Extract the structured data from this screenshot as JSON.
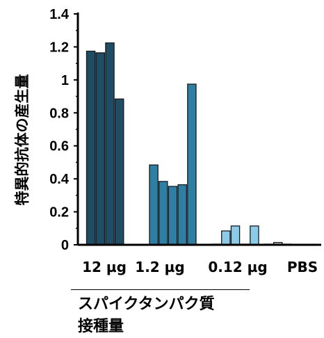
{
  "chart_data": {
    "type": "bar",
    "ylabel": "特異的抗体の産生量",
    "xlabel_lines": [
      "スパイクタンパク質",
      "接種量"
    ],
    "ylim": [
      0,
      1.4
    ],
    "yticks": [
      "0",
      "0.2",
      "0.4",
      "0.6",
      "0.8",
      "1",
      "1.2",
      "1.4"
    ],
    "grid": false,
    "legend": "none",
    "groups": [
      {
        "label": "12 µg",
        "color": "#1f4d66",
        "values": [
          1.17,
          1.16,
          1.22,
          0.88
        ]
      },
      {
        "label": "1.2 µg",
        "color": "#2f7fa5",
        "values": [
          0.48,
          0.38,
          0.35,
          0.36,
          0.97
        ]
      },
      {
        "label": "0.12 µg",
        "color": "#8ccbe8",
        "values": [
          0.0,
          0.08,
          0.11,
          0.0,
          0.11
        ]
      },
      {
        "label": "PBS",
        "color": "#c6c6c6",
        "values": [
          0.0,
          0.01,
          0.0
        ]
      }
    ]
  }
}
